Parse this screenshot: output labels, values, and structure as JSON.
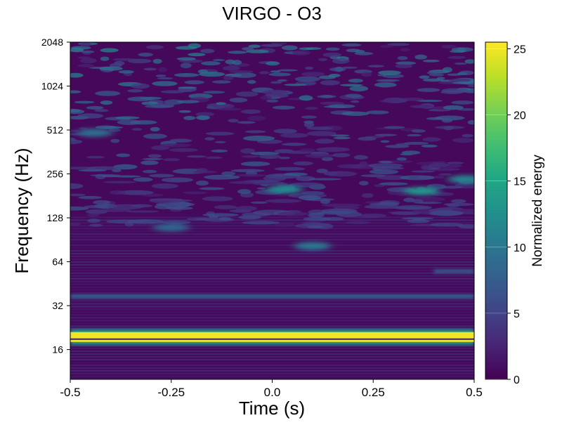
{
  "chart_data": {
    "type": "heatmap",
    "title": "VIRGO - O3",
    "xlabel": "Time (s)",
    "ylabel": "Frequency (Hz)",
    "colorbar_label": "Normalized energy",
    "xlim": [
      -0.5,
      0.5
    ],
    "ylim": [
      10,
      2048
    ],
    "yscale": "log2",
    "xticks": [
      -0.5,
      -0.25,
      0.0,
      0.25,
      0.5
    ],
    "xtick_labels": [
      "-0.5",
      "-0.25",
      "0.0",
      "0.25",
      "0.5"
    ],
    "yticks": [
      16,
      32,
      64,
      128,
      256,
      512,
      1024,
      2048
    ],
    "ytick_labels": [
      "16",
      "32",
      "64",
      "128",
      "256",
      "512",
      "1024",
      "2048"
    ],
    "colorbar_range": [
      0,
      25.5
    ],
    "colorbar_ticks": [
      0,
      5,
      10,
      15,
      20,
      25
    ],
    "colorbar_tick_labels": [
      "0",
      "5",
      "10",
      "15",
      "20",
      "25"
    ],
    "colormap": "viridis",
    "colormap_stops": [
      "#440154",
      "#482475",
      "#414487",
      "#355f8d",
      "#2a788e",
      "#21918c",
      "#22a884",
      "#44bf70",
      "#7ad151",
      "#bddf26",
      "#fde725"
    ],
    "background_color": "#46085a",
    "features": [
      {
        "kind": "band",
        "freq_hz": 19.5,
        "t_start": -0.5,
        "t_end": 0.5,
        "energy": 25,
        "note": "strong line near 20 Hz"
      },
      {
        "kind": "band",
        "freq_hz": 37,
        "t_start": -0.5,
        "t_end": 0.5,
        "energy": 8
      },
      {
        "kind": "band",
        "freq_hz": 55,
        "t_start": 0.4,
        "t_end": 0.5,
        "energy": 7
      },
      {
        "kind": "blob",
        "freq_hz": 200,
        "t": 0.03,
        "energy": 12
      },
      {
        "kind": "blob",
        "freq_hz": 195,
        "t": 0.37,
        "energy": 13
      },
      {
        "kind": "blob",
        "freq_hz": 82,
        "t": 0.1,
        "energy": 10
      },
      {
        "kind": "blob",
        "freq_hz": 110,
        "t": -0.25,
        "energy": 8
      },
      {
        "kind": "blob",
        "freq_hz": 235,
        "t": 0.48,
        "energy": 11
      },
      {
        "kind": "blob",
        "freq_hz": 490,
        "t": -0.44,
        "energy": 9
      }
    ]
  }
}
